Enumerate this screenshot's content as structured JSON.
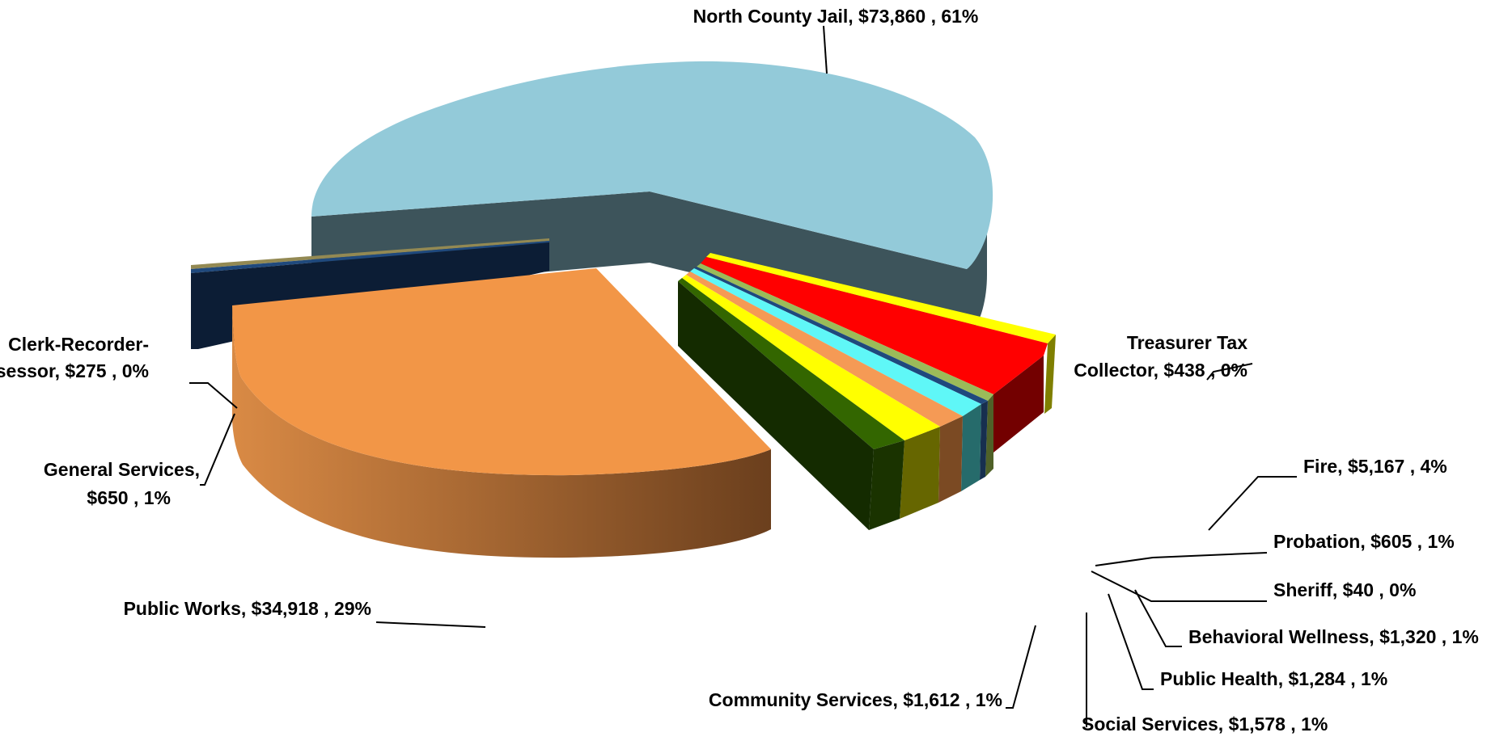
{
  "chart_data": {
    "type": "pie",
    "style": "3d-exploded",
    "legend": "none",
    "slices": [
      {
        "name": "North County Jail",
        "value": 73860,
        "value_label": "$73,860",
        "pct_label": "61%",
        "color": "#93cad9"
      },
      {
        "name": "Treasurer Tax Collector",
        "value": 438,
        "value_label": "$438",
        "pct_label": "0%",
        "color": "#ffff00"
      },
      {
        "name": "Fire",
        "value": 5167,
        "value_label": "$5,167",
        "pct_label": "4%",
        "color": "#ff0000"
      },
      {
        "name": "Probation",
        "value": 605,
        "value_label": "$605",
        "pct_label": "1%",
        "color": "#9bbb59"
      },
      {
        "name": "Sheriff",
        "value": 40,
        "value_label": "$40",
        "pct_label": "0%",
        "color": "#1f497d"
      },
      {
        "name": "Behavioral Wellness",
        "value": 1320,
        "value_label": "$1,320",
        "pct_label": "1%",
        "color": "#5ff7f7"
      },
      {
        "name": "Public Health",
        "value": 1284,
        "value_label": "$1,284",
        "pct_label": "1%",
        "color": "#f59a55"
      },
      {
        "name": "Social Services",
        "value": 1578,
        "value_label": "$1,578",
        "pct_label": "1%",
        "color": "#ffff00"
      },
      {
        "name": "Community Services",
        "value": 1612,
        "value_label": "$1,612",
        "pct_label": "1%",
        "color": "#336600"
      },
      {
        "name": "Public Works",
        "value": 34918,
        "value_label": "$34,918",
        "pct_label": "29%",
        "color": "#f29647"
      },
      {
        "name": "General Services",
        "value": 650,
        "value_label": "$650",
        "pct_label": "1%",
        "color": "#1f497d"
      },
      {
        "name": "Clerk-Recorder-Assessor",
        "value": 275,
        "value_label": "$275",
        "pct_label": "0%",
        "color": "#938953"
      }
    ]
  }
}
